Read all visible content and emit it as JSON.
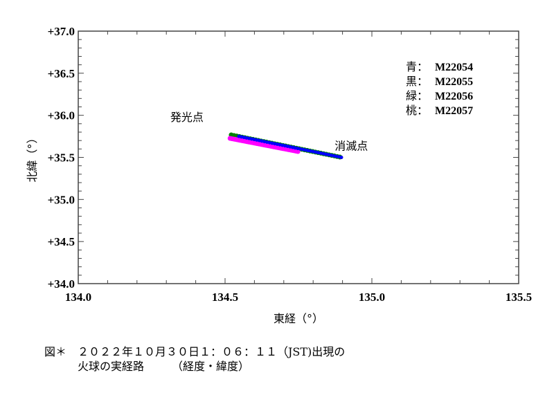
{
  "chart_data": {
    "type": "scatter",
    "xlabel": "東経（°）",
    "ylabel": "北緯（°）",
    "xlim": [
      134.0,
      135.5
    ],
    "ylim": [
      34.0,
      37.0
    ],
    "xticks": [
      "134.0",
      "134.5",
      "135.0",
      "135.5"
    ],
    "yticks": [
      "+34.0",
      "+34.5",
      "+35.0",
      "+35.5",
      "+36.0",
      "+36.5",
      "+37.0"
    ],
    "grid": false,
    "legend_placement": "top-right",
    "legend": [
      {
        "color_word": "青",
        "sep": "：",
        "name": "M22054",
        "color": "#0000ff"
      },
      {
        "color_word": "黒",
        "sep": "：",
        "name": "M22055",
        "color": "#000000"
      },
      {
        "color_word": "緑",
        "sep": "：",
        "name": "M22056",
        "color": "#008000"
      },
      {
        "color_word": "桃",
        "sep": "：",
        "name": "M22057",
        "color": "#ff00ff"
      }
    ],
    "annotations": [
      {
        "text": "発光点",
        "x": 134.37,
        "y": 35.93
      },
      {
        "text": "消滅点",
        "x": 134.93,
        "y": 35.59
      }
    ],
    "series": [
      {
        "name": "M22055",
        "color": "#000000",
        "start": [
          134.547,
          35.75
        ],
        "end": [
          134.896,
          35.5
        ]
      },
      {
        "name": "M22056",
        "color": "#008000",
        "start": [
          134.521,
          35.767
        ],
        "end": [
          134.891,
          35.504
        ]
      },
      {
        "name": "M22057",
        "color": "#ff00ff",
        "start": [
          134.517,
          35.726
        ],
        "end": [
          134.748,
          35.57
        ]
      },
      {
        "name": "M22054",
        "color": "#0000ff",
        "start": [
          134.547,
          35.75
        ],
        "end": [
          134.896,
          35.5
        ]
      }
    ]
  },
  "caption": {
    "line1": "図＊　２０２２年１０月３０日１：０６：１１（JST)出現の",
    "line2": "　　　火球の実経路　　　（経度・緯度）"
  }
}
